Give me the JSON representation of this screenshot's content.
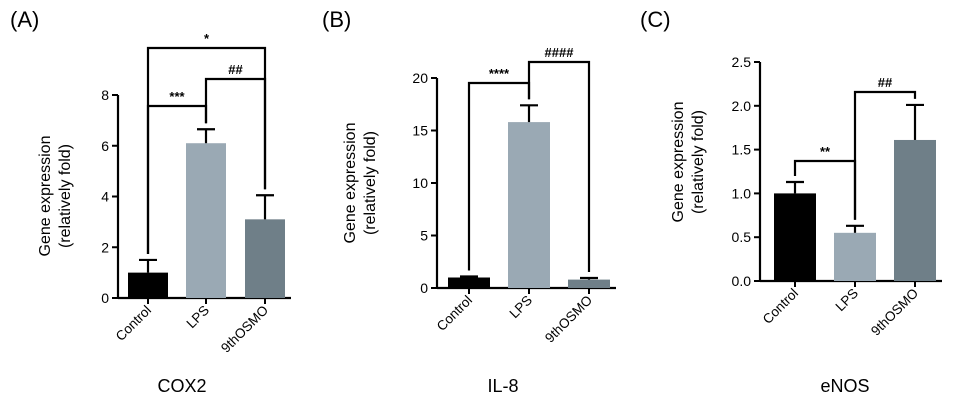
{
  "chart_data": [
    {
      "type": "bar",
      "panel": "(A)",
      "title": "COX2",
      "ylabel": [
        "Gene expression",
        "(relatively fold)"
      ],
      "ylim": [
        0,
        8
      ],
      "yticks": [
        0,
        2,
        4,
        6,
        8
      ],
      "ytick_labels": [
        "0",
        "2",
        "4",
        "6",
        "8"
      ],
      "categories": [
        "Control",
        "LPS",
        "9thOSMO"
      ],
      "values": [
        1.0,
        6.1,
        3.1
      ],
      "errors": [
        0.5,
        0.55,
        0.95
      ],
      "colors": [
        "#000000",
        "#9aa9b4",
        "#6f7f88"
      ],
      "significance": [
        {
          "from": 0,
          "to": 1,
          "label": "***"
        },
        {
          "from": 1,
          "to": 2,
          "label": "##"
        },
        {
          "from": 0,
          "to": 2,
          "label": "*"
        }
      ]
    },
    {
      "type": "bar",
      "panel": "(B)",
      "title": "IL-8",
      "ylabel": [
        "Gene expression",
        "(relatively fold)"
      ],
      "ylim": [
        0,
        20
      ],
      "yticks": [
        0,
        5,
        10,
        15,
        20
      ],
      "ytick_labels": [
        "0",
        "5",
        "10",
        "15",
        "20"
      ],
      "categories": [
        "Control",
        "LPS",
        "9thOSMO"
      ],
      "values": [
        1.0,
        15.8,
        0.8
      ],
      "errors": [
        0.1,
        1.6,
        0.15
      ],
      "colors": [
        "#000000",
        "#9aa9b4",
        "#6f7f88"
      ],
      "significance": [
        {
          "from": 0,
          "to": 1,
          "label": "****"
        },
        {
          "from": 1,
          "to": 2,
          "label": "####"
        }
      ]
    },
    {
      "type": "bar",
      "panel": "(C)",
      "title": "eNOS",
      "ylabel": [
        "Gene expression",
        "(relatively fold)"
      ],
      "ylim": [
        0,
        2.5
      ],
      "yticks": [
        0,
        0.5,
        1.0,
        1.5,
        2.0,
        2.5
      ],
      "ytick_labels": [
        "0.0",
        "0.5",
        "1.0",
        "1.5",
        "2.0",
        "2.5"
      ],
      "categories": [
        "Control",
        "LPS",
        "9thOSMO"
      ],
      "values": [
        1.0,
        0.55,
        1.61
      ],
      "errors": [
        0.13,
        0.08,
        0.4
      ],
      "colors": [
        "#000000",
        "#9aa9b4",
        "#6f7f88"
      ],
      "significance": [
        {
          "from": 0,
          "to": 1,
          "label": "**"
        },
        {
          "from": 1,
          "to": 2,
          "label": "##"
        }
      ]
    }
  ]
}
